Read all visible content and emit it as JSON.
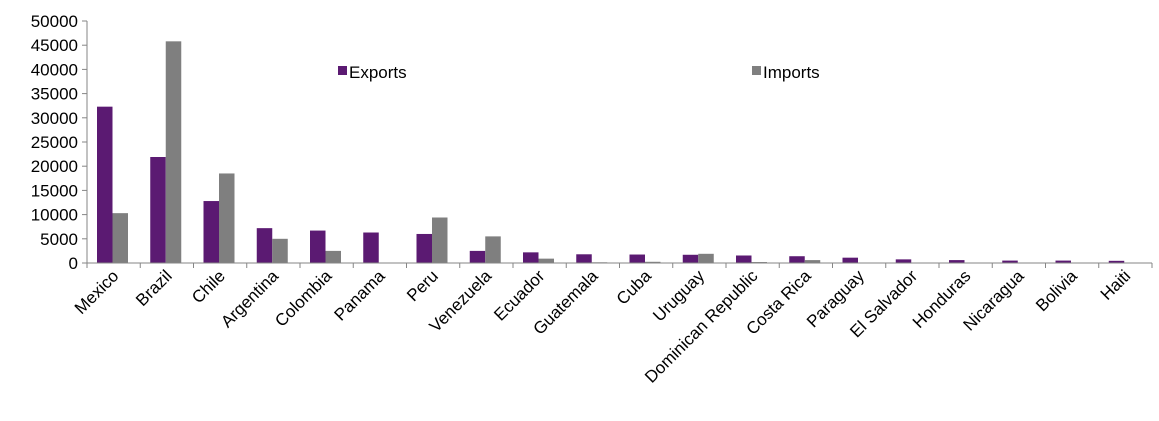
{
  "chart_data": {
    "type": "bar",
    "categories": [
      "Mexico",
      "Brazil",
      "Chile",
      "Argentina",
      "Colombia",
      "Panama",
      "Peru",
      "Venezuela",
      "Ecuador",
      "Guatemala",
      "Cuba",
      "Uruguay",
      "Dominican Republic",
      "Costa Rica",
      "Paraguay",
      "El Salvador",
      "Honduras",
      "Nicaragua",
      "Bolivia",
      "Haiti"
    ],
    "series": [
      {
        "name": "Exports",
        "color": "#5b1a72",
        "values": [
          32300,
          21900,
          12800,
          7200,
          6700,
          6300,
          6000,
          2500,
          2200,
          1800,
          1750,
          1700,
          1550,
          1400,
          1100,
          750,
          600,
          500,
          500,
          450
        ]
      },
      {
        "name": "Imports",
        "color": "#7f7f7f",
        "values": [
          10300,
          45800,
          18500,
          5000,
          2500,
          0,
          9400,
          5500,
          900,
          150,
          250,
          1900,
          200,
          600,
          50,
          0,
          50,
          0,
          0,
          0
        ]
      }
    ],
    "ylim": [
      0,
      50000
    ],
    "yticks": [
      0,
      5000,
      10000,
      15000,
      20000,
      25000,
      30000,
      35000,
      40000,
      45000,
      50000
    ],
    "grid": false,
    "legend_placement": "top-center",
    "title": "",
    "xlabel": "",
    "ylabel": ""
  }
}
